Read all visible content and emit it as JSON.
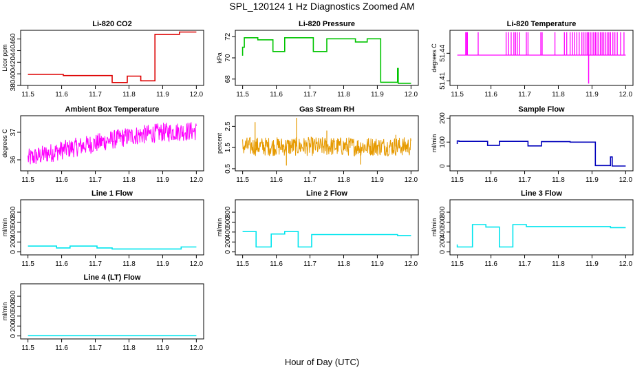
{
  "figure": {
    "title": "SPL_120124  1 Hz Diagnostics Zoomed AM",
    "xlabel": "Hour of Day (UTC)"
  },
  "chart_data": [
    {
      "type": "line",
      "title": "Li-820 CO2",
      "ylabel": "Licor ppm",
      "color": "#dd0000",
      "xlim": [
        11.5,
        12.0
      ],
      "ylim": [
        380,
        475
      ],
      "xticks": [
        "11.5",
        "11.6",
        "11.7",
        "11.8",
        "11.9",
        "12.0"
      ],
      "yticks": [
        380,
        400,
        420,
        440,
        460
      ],
      "series": [
        {
          "name": "CO2",
          "style": "steps",
          "x": [
            11.5,
            11.605,
            11.605,
            11.75,
            11.75,
            11.795,
            11.795,
            11.835,
            11.835,
            11.877,
            11.877,
            11.95,
            11.95,
            12.0
          ],
          "y": [
            399,
            399,
            397,
            397,
            385,
            385,
            396,
            396,
            388,
            388,
            468,
            468,
            472,
            472
          ]
        }
      ]
    },
    {
      "type": "line",
      "title": "Li-820 Pressure",
      "ylabel": "kPa",
      "color": "#00c400",
      "xlim": [
        11.5,
        12.0
      ],
      "ylim": [
        67.4,
        72.6
      ],
      "xticks": [
        "11.5",
        "11.6",
        "11.7",
        "11.8",
        "11.9",
        "12.0"
      ],
      "yticks": [
        68,
        70,
        72
      ],
      "series": [
        {
          "name": "Pressure",
          "style": "steps",
          "x": [
            11.5,
            11.5,
            11.505,
            11.505,
            11.545,
            11.545,
            11.59,
            11.59,
            11.625,
            11.625,
            11.71,
            11.71,
            11.75,
            11.75,
            11.835,
            11.835,
            11.87,
            11.87,
            11.91,
            11.91,
            11.96,
            11.96,
            11.962,
            11.962,
            12.0
          ],
          "y": [
            70.2,
            71.0,
            71.0,
            71.9,
            71.9,
            71.7,
            71.7,
            70.6,
            70.6,
            71.9,
            71.9,
            70.6,
            70.6,
            71.8,
            71.8,
            71.5,
            71.5,
            71.8,
            71.8,
            67.7,
            67.7,
            69.0,
            69.0,
            67.6,
            67.6
          ]
        }
      ]
    },
    {
      "type": "line",
      "title": "Li-820 Temperature",
      "ylabel": "degrees C",
      "color": "#ff00ff",
      "xlim": [
        11.5,
        12.0
      ],
      "ylim": [
        51.405,
        51.465
      ],
      "xticks": [
        "11.5",
        "11.6",
        "11.7",
        "11.8",
        "11.9",
        "12.0"
      ],
      "yticks": [
        51.41,
        51.44
      ],
      "series": [
        {
          "name": "Temperature",
          "style": "spikes",
          "baseline": 51.438,
          "spike_top": 51.463,
          "spikes": [
            11.525,
            11.527,
            11.53,
            11.562,
            11.645,
            11.652,
            11.66,
            11.668,
            11.673,
            11.678,
            11.685,
            11.705,
            11.71,
            11.748,
            11.752,
            11.79,
            11.818,
            11.825,
            11.835,
            11.842,
            11.848,
            11.855,
            11.862,
            11.87,
            11.876,
            11.882,
            11.886,
            11.89,
            11.895,
            11.9,
            11.905,
            11.91,
            11.915,
            11.92,
            11.925,
            11.93,
            11.935,
            11.94,
            11.945,
            11.95,
            11.955,
            11.962,
            11.968,
            11.975,
            11.985,
            11.995
          ],
          "dip_x": 11.89,
          "dip_y": 51.407
        }
      ]
    },
    {
      "type": "line",
      "title": "Ambient Box Temperature",
      "ylabel": "degrees C",
      "color": "#ff00ff",
      "xlim": [
        11.5,
        12.0
      ],
      "ylim": [
        35.6,
        37.6
      ],
      "xticks": [
        "11.5",
        "11.6",
        "11.7",
        "11.8",
        "11.9",
        "12.0"
      ],
      "yticks": [
        36.0,
        37.0
      ],
      "series": [
        {
          "name": "Ambient",
          "style": "noise",
          "trend_x": [
            11.5,
            11.6,
            11.7,
            11.8,
            11.9,
            12.0
          ],
          "trend_y": [
            36.05,
            36.35,
            36.6,
            36.85,
            37.0,
            37.05
          ],
          "amplitude": 0.35
        }
      ]
    },
    {
      "type": "line",
      "title": "Gas Stream RH",
      "ylabel": "percent",
      "color": "#e69a00",
      "xlim": [
        11.5,
        12.0
      ],
      "ylim": [
        0.4,
        3.0
      ],
      "xticks": [
        "11.5",
        "11.6",
        "11.7",
        "11.8",
        "11.9",
        "12.0"
      ],
      "yticks": [
        0.5,
        1.5,
        2.5
      ],
      "series": [
        {
          "name": "RH",
          "style": "noise",
          "trend_x": [
            11.5,
            12.0
          ],
          "trend_y": [
            1.55,
            1.55
          ],
          "amplitude": 0.45,
          "outliers": [
            {
              "x": 11.537,
              "y": 2.7
            },
            {
              "x": 11.66,
              "y": 2.9
            },
            {
              "x": 11.63,
              "y": 0.65
            },
            {
              "x": 11.75,
              "y": 2.3
            },
            {
              "x": 11.85,
              "y": 0.7
            },
            {
              "x": 11.955,
              "y": 2.1
            }
          ]
        }
      ]
    },
    {
      "type": "line",
      "title": "Sample Flow",
      "ylabel": "ml/min",
      "color": "#0000bb",
      "xlim": [
        11.5,
        12.0
      ],
      "ylim": [
        -20,
        210
      ],
      "xticks": [
        "11.5",
        "11.6",
        "11.7",
        "11.8",
        "11.9",
        "12.0"
      ],
      "yticks": [
        0,
        100,
        200
      ],
      "series": [
        {
          "name": "Sample",
          "style": "steps",
          "x": [
            11.5,
            11.5,
            11.505,
            11.505,
            11.59,
            11.59,
            11.625,
            11.625,
            11.71,
            11.71,
            11.75,
            11.75,
            11.835,
            11.835,
            11.91,
            11.91,
            11.955,
            11.955,
            11.96,
            11.96,
            12.0
          ],
          "y": [
            92,
            105,
            105,
            103,
            103,
            86,
            86,
            103,
            103,
            84,
            84,
            102,
            102,
            100,
            100,
            2,
            2,
            38,
            38,
            0,
            0
          ]
        }
      ]
    },
    {
      "type": "line",
      "title": "Line 1 Flow",
      "ylabel": "ml/min",
      "color": "#00e5ee",
      "xlim": [
        11.5,
        12.0
      ],
      "ylim": [
        -60,
        1050
      ],
      "xticks": [
        "11.5",
        "11.6",
        "11.7",
        "11.8",
        "11.9",
        "12.0"
      ],
      "yticks": [
        0,
        200,
        400,
        600,
        800
      ],
      "series": [
        {
          "name": "Line1",
          "style": "steps",
          "x": [
            11.5,
            11.585,
            11.585,
            11.625,
            11.625,
            11.705,
            11.705,
            11.75,
            11.75,
            11.955,
            11.955,
            12.0
          ],
          "y": [
            118,
            118,
            80,
            80,
            118,
            118,
            80,
            80,
            60,
            60,
            100,
            100
          ]
        }
      ]
    },
    {
      "type": "line",
      "title": "Line 2 Flow",
      "ylabel": "ml/min",
      "color": "#00e5ee",
      "xlim": [
        11.5,
        12.0
      ],
      "ylim": [
        -60,
        1050
      ],
      "xticks": [
        "11.5",
        "11.6",
        "11.7",
        "11.8",
        "11.9",
        "12.0"
      ],
      "yticks": [
        0,
        200,
        400,
        600,
        800
      ],
      "series": [
        {
          "name": "Line2",
          "style": "steps",
          "x": [
            11.5,
            11.54,
            11.54,
            11.585,
            11.585,
            11.625,
            11.625,
            11.665,
            11.665,
            11.705,
            11.705,
            11.96,
            11.96,
            12.0
          ],
          "y": [
            410,
            410,
            100,
            100,
            360,
            360,
            410,
            410,
            100,
            100,
            350,
            350,
            330,
            330
          ]
        }
      ]
    },
    {
      "type": "line",
      "title": "Line 3 Flow",
      "ylabel": "ml/min",
      "color": "#00e5ee",
      "xlim": [
        11.5,
        12.0
      ],
      "ylim": [
        -60,
        1050
      ],
      "xticks": [
        "11.5",
        "11.6",
        "11.7",
        "11.8",
        "11.9",
        "12.0"
      ],
      "yticks": [
        0,
        200,
        400,
        600,
        800
      ],
      "series": [
        {
          "name": "Line3",
          "style": "steps",
          "x": [
            11.5,
            11.5,
            11.505,
            11.505,
            11.545,
            11.545,
            11.585,
            11.585,
            11.625,
            11.625,
            11.665,
            11.665,
            11.705,
            11.705,
            11.955,
            11.955,
            12.0
          ],
          "y": [
            150,
            100,
            100,
            100,
            100,
            550,
            550,
            500,
            500,
            100,
            100,
            550,
            550,
            510,
            510,
            490,
            490
          ]
        }
      ]
    },
    {
      "type": "line",
      "title": "Line 4 (LT) Flow",
      "ylabel": "ml/min",
      "color": "#00e5ee",
      "xlim": [
        11.5,
        12.0
      ],
      "ylim": [
        -60,
        1050
      ],
      "xticks": [
        "11.5",
        "11.6",
        "11.7",
        "11.8",
        "11.9",
        "12.0"
      ],
      "yticks": [
        0,
        200,
        400,
        600,
        800
      ],
      "series": [
        {
          "name": "Line4",
          "style": "steps",
          "x": [
            11.5,
            12.0
          ],
          "y": [
            5,
            5
          ]
        }
      ]
    }
  ]
}
